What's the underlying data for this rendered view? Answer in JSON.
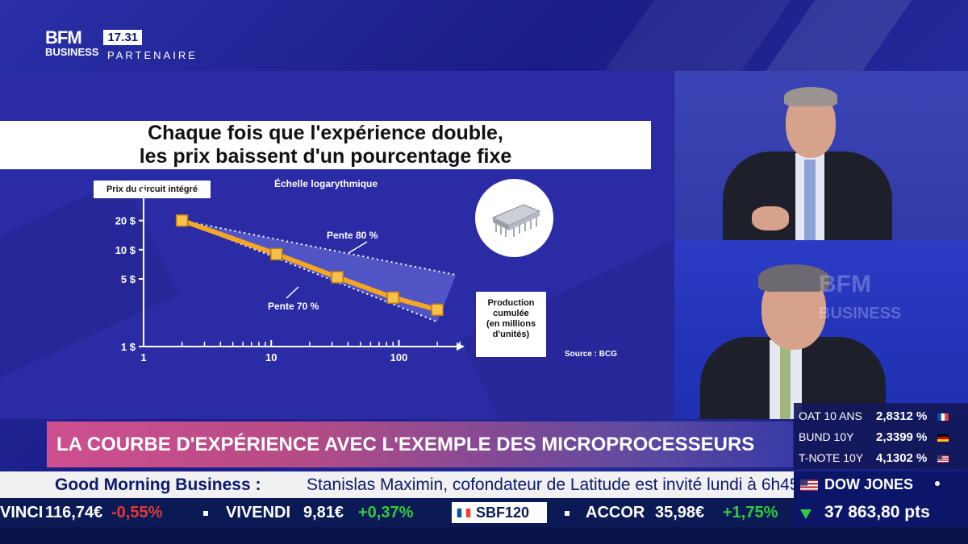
{
  "header": {
    "logo_top": "BFM",
    "logo_bottom": "BUSINESS",
    "clock": "17.31",
    "tag": "PARTENAIRE"
  },
  "slide": {
    "title_line1": "Chaque fois que l'expérience double,",
    "title_line2": "les prix baissent d'un pourcentage fixe",
    "scale_label": "Échelle logarythmique",
    "ylabel": "Prix du circuit intégré",
    "xlabel_line1": "Production",
    "xlabel_line2": "cumulée",
    "xlabel_line3": "(en millions",
    "xlabel_line4": "d'unités)",
    "source": "Source : BCG",
    "annotation_80": "Pente 80 %",
    "annotation_70": "Pente 70 %",
    "y_ticks": [
      "20 $",
      "10 $",
      "5 $",
      "1 $"
    ],
    "x_ticks": [
      "1",
      "10",
      "100"
    ],
    "chip_icon": "integrated-circuit-chip-icon"
  },
  "chart_data": {
    "type": "line",
    "title": "Chaque fois que l'expérience double, les prix baissent d'un pourcentage fixe",
    "xlabel": "Production cumulée (en millions d'unités)",
    "ylabel": "Prix du circuit intégré",
    "x_scale": "log",
    "y_scale": "log",
    "xlim": [
      1,
      300
    ],
    "ylim": [
      1,
      25
    ],
    "x_ticks": [
      1,
      10,
      100
    ],
    "y_ticks": [
      1,
      5,
      10,
      20
    ],
    "series": [
      {
        "x": [
          2,
          11,
          33,
          90,
          200
        ],
        "y": [
          20,
          9,
          5.2,
          3.2,
          2.4
        ]
      }
    ],
    "band_upper": {
      "x": [
        2,
        280
      ],
      "y": [
        20,
        5.5
      ]
    },
    "band_lower": {
      "x": [
        2,
        200
      ],
      "y": [
        20,
        1.8
      ]
    },
    "legend": "none",
    "grid": false
  },
  "headline": "LA COURBE D'EXPÉRIENCE AVEC L'EXEMPLE DES MICROPROCESSEURS",
  "rates": [
    {
      "name": "OAT 10 ANS",
      "value": "2,8312 %",
      "flag": "france"
    },
    {
      "name": "BUND 10Y",
      "value": "2,3399 %",
      "flag": "germany"
    },
    {
      "name": "T-NOTE 10Y",
      "value": "4,1302 %",
      "flag": "usa"
    }
  ],
  "gmb": {
    "show": "Good Morning Business :",
    "text": "Stanislas Maximin, cofondateur de Latitude est invité lundi à 6h45."
  },
  "dow": {
    "name": "DOW JONES",
    "value": "37 863,80 pts",
    "trend": "up"
  },
  "ticker": {
    "item1_name": "VINCI",
    "item1_price": "116,74€",
    "item1_change": "-0,55%",
    "item2_name": "VIVENDI",
    "item2_price": "9,81€",
    "item2_change": "+0,37%",
    "item3_name": "SBF120",
    "item4_name": "ACCOR",
    "item4_price": "35,98€",
    "item4_change": "+1,75%"
  },
  "colors": {
    "brand_blue": "#1c1f8a",
    "headline_pink": "#cf4f8f",
    "curve_orange": "#f5a623",
    "down_red": "#e53935",
    "up_green": "#2ecc40"
  }
}
